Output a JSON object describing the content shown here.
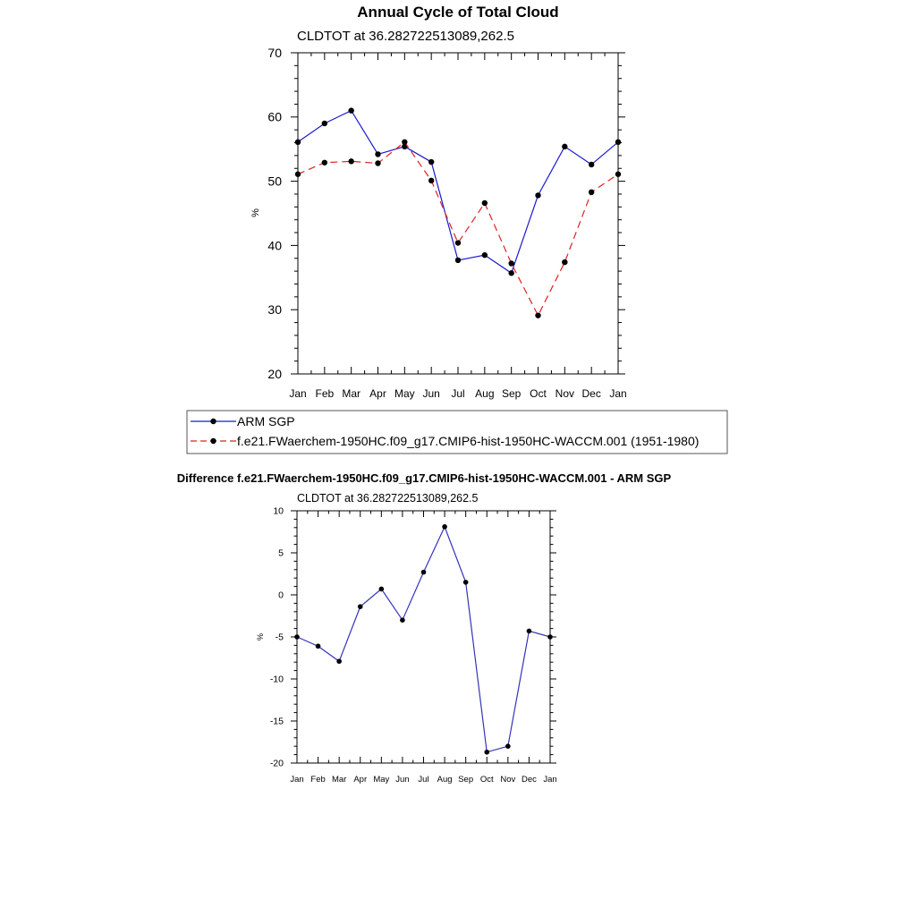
{
  "chart_data": [
    {
      "type": "line",
      "title": "Annual Cycle of Total Cloud",
      "subtitle": "CLDTOT at 36.282722513089,262.5",
      "xlabel": "",
      "ylabel": "%",
      "categories": [
        "Jan",
        "Feb",
        "Mar",
        "Apr",
        "May",
        "Jun",
        "Jul",
        "Aug",
        "Sep",
        "Oct",
        "Nov",
        "Dec",
        "Jan"
      ],
      "ylim": [
        20,
        70
      ],
      "yticks": [
        20,
        30,
        40,
        50,
        60,
        70
      ],
      "grid": false,
      "legend_position": "bottom",
      "series": [
        {
          "name": "ARM SGP",
          "color": "#1a1acc",
          "dash": "solid",
          "values": [
            56.1,
            59.0,
            61.0,
            54.2,
            55.4,
            53.0,
            37.7,
            38.5,
            35.7,
            47.8,
            55.4,
            52.6,
            56.1
          ]
        },
        {
          "name": "f.e21.FWaerchem-1950HC.f09_g17.CMIP6-hist-1950HC-WACCM.001 (1951-1980)",
          "color": "#dd2222",
          "dash": "dashed",
          "values": [
            51.1,
            52.9,
            53.1,
            52.8,
            56.1,
            50.1,
            40.4,
            46.6,
            37.2,
            29.1,
            37.4,
            48.3,
            51.1
          ]
        }
      ]
    },
    {
      "type": "line",
      "title": "Difference f.e21.FWaerchem-1950HC.f09_g17.CMIP6-hist-1950HC-WACCM.001 - ARM SGP",
      "subtitle": "CLDTOT at 36.282722513089,262.5",
      "xlabel": "",
      "ylabel": "%",
      "categories": [
        "Jan",
        "Feb",
        "Mar",
        "Apr",
        "May",
        "Jun",
        "Jul",
        "Aug",
        "Sep",
        "Oct",
        "Nov",
        "Dec",
        "Jan"
      ],
      "ylim": [
        -20,
        10
      ],
      "yticks": [
        -20,
        -15,
        -10,
        -5,
        0,
        5,
        10
      ],
      "grid": false,
      "series": [
        {
          "name": "Difference",
          "color": "#3333bb",
          "dash": "solid",
          "values": [
            -5.0,
            -6.1,
            -7.9,
            -1.4,
            0.7,
            -3.0,
            2.7,
            8.1,
            1.5,
            -18.7,
            -18.0,
            -4.3,
            -5.0
          ]
        }
      ]
    }
  ]
}
